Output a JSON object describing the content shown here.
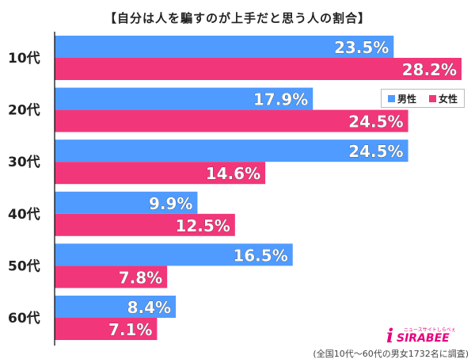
{
  "title": "【自分は人を騙すのが上手だと思う人の割合】",
  "footnote": "(全国10代〜60代の男女1732名に調査)",
  "logo": {
    "text": "SIRABEE",
    "initial": "i",
    "kana": "ニュースサイトしらべぇ"
  },
  "colors": {
    "male": "#4f9bff",
    "female": "#f2367a",
    "axis": "#000000"
  },
  "chart_data": {
    "type": "bar",
    "orientation": "horizontal",
    "title": "【自分は人を騙すのが上手だと思う人の割合】",
    "categories": [
      "10代",
      "20代",
      "30代",
      "40代",
      "50代",
      "60代"
    ],
    "series": [
      {
        "name": "男性",
        "color": "#4f9bff",
        "values": [
          23.5,
          17.9,
          24.5,
          9.9,
          16.5,
          8.4
        ],
        "labels": [
          "23.5%",
          "17.9%",
          "24.5%",
          "9.9%",
          "16.5%",
          "8.4%"
        ]
      },
      {
        "name": "女性",
        "color": "#f2367a",
        "values": [
          28.2,
          24.5,
          14.6,
          12.5,
          7.8,
          7.1
        ],
        "labels": [
          "28.2%",
          "24.5%",
          "14.6%",
          "12.5%",
          "7.8%",
          "7.1%"
        ]
      }
    ],
    "xlim": [
      0,
      28.2
    ],
    "legend": "top-right",
    "grid": false
  }
}
